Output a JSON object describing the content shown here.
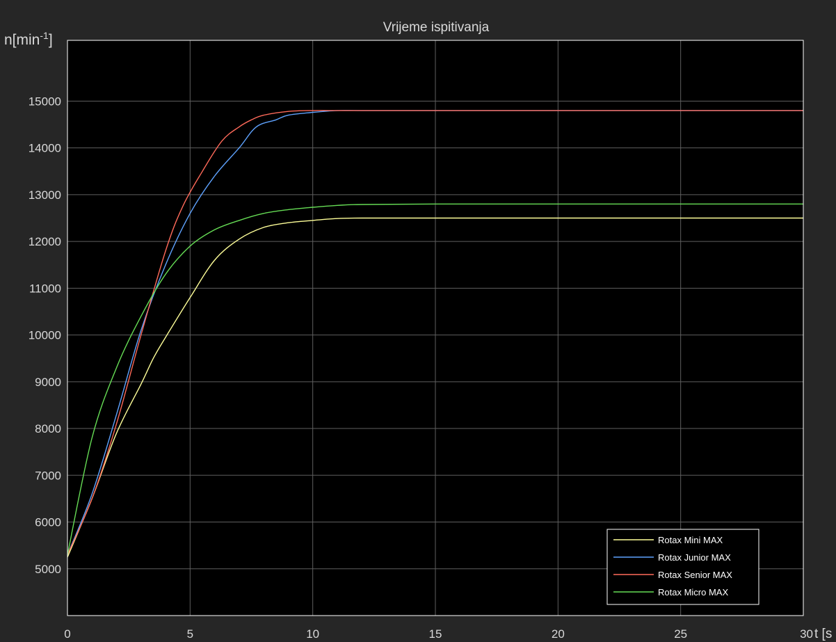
{
  "colors": {
    "figure_bg": "#262626",
    "axes_bg": "#000000",
    "grid": "#5f5f5f",
    "text": "#d9d9d9",
    "legend_text": "#ffffff"
  },
  "chart_data": {
    "type": "line",
    "title": "Vrijeme ispitivanja",
    "ylabel_base": "n[min",
    "ylabel_sup": "-1",
    "ylabel_close": "]",
    "xlabel": "t [s",
    "xlim": [
      0,
      30
    ],
    "ylim": [
      4000,
      16300
    ],
    "xticks": [
      0,
      5,
      10,
      15,
      20,
      25,
      30
    ],
    "yticks": [
      5000,
      6000,
      7000,
      8000,
      9000,
      10000,
      11000,
      12000,
      13000,
      14000,
      15000
    ],
    "grid": true,
    "legend_position": "bottom-right",
    "series": [
      {
        "name": "Rotax Mini MAX",
        "color": "#ffff99",
        "x": [
          0,
          1,
          2,
          3,
          3.5,
          4,
          5,
          6,
          7,
          8,
          9,
          10,
          11,
          12,
          15,
          20,
          25,
          30
        ],
        "y": [
          5250,
          6500,
          7900,
          8950,
          9500,
          9950,
          10800,
          11600,
          12050,
          12300,
          12400,
          12450,
          12490,
          12500,
          12500,
          12500,
          12500,
          12500
        ]
      },
      {
        "name": "Rotax Junior MAX",
        "color": "#5fa3ff",
        "x": [
          0,
          1,
          2,
          3,
          4,
          5,
          6,
          7,
          7.7,
          8.5,
          9,
          10,
          11,
          12,
          15,
          20,
          25,
          30
        ],
        "y": [
          5300,
          6600,
          8300,
          10100,
          11500,
          12600,
          13400,
          14000,
          14450,
          14600,
          14700,
          14760,
          14800,
          14800,
          14800,
          14800,
          14800,
          14800
        ]
      },
      {
        "name": "Rotax Senior MAX",
        "color": "#ff6a5a",
        "x": [
          0,
          1,
          2,
          3,
          4,
          4.7,
          5.5,
          6.3,
          7,
          7.5,
          8,
          9,
          10,
          11,
          15,
          20,
          25,
          30
        ],
        "y": [
          5300,
          6500,
          8100,
          10000,
          11800,
          12750,
          13500,
          14150,
          14450,
          14600,
          14700,
          14780,
          14800,
          14800,
          14800,
          14800,
          14800,
          14800
        ]
      },
      {
        "name": "Rotax Micro MAX",
        "color": "#66dd55",
        "x": [
          0,
          1,
          2,
          3,
          4,
          5,
          6,
          7,
          8,
          9,
          10,
          11,
          12,
          15,
          20,
          25,
          30
        ],
        "y": [
          5300,
          7800,
          9300,
          10400,
          11300,
          11900,
          12250,
          12450,
          12600,
          12680,
          12730,
          12770,
          12790,
          12800,
          12800,
          12800,
          12800
        ]
      }
    ]
  }
}
